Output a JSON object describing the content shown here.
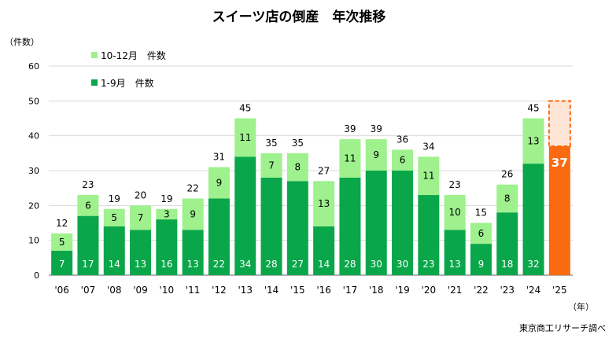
{
  "chart_data": {
    "type": "bar",
    "stacked": true,
    "title": "スイーツ店の倒産　年次推移",
    "ylabel": "（件数）",
    "xlabel": "（年）",
    "source": "東京商工リサーチ調べ",
    "ylim": [
      0,
      60
    ],
    "yticks": [
      "0",
      "10",
      "20",
      "30",
      "40",
      "50",
      "60"
    ],
    "grid": true,
    "legend_position": "top-left",
    "categories": [
      "'06",
      "'07",
      "'08",
      "'09",
      "'10",
      "'11",
      "'12",
      "'13",
      "'14",
      "'15",
      "'16",
      "'17",
      "'18",
      "'19",
      "'20",
      "'21",
      "'22",
      "'23",
      "'24",
      "'25"
    ],
    "series": [
      {
        "name": "1-9月　件数",
        "color": "#0aa64a",
        "values": [
          7,
          17,
          14,
          13,
          16,
          13,
          22,
          34,
          28,
          27,
          14,
          28,
          30,
          30,
          23,
          13,
          9,
          18,
          32,
          37
        ]
      },
      {
        "name": "10-12月　件数",
        "color": "#9ef18d",
        "values": [
          5,
          6,
          5,
          7,
          3,
          9,
          9,
          11,
          7,
          8,
          13,
          11,
          9,
          6,
          11,
          10,
          6,
          8,
          13,
          null
        ]
      }
    ],
    "totals": [
      "12",
      "23",
      "19",
      "20",
      "19",
      "22",
      "31",
      "45",
      "35",
      "35",
      "27",
      "39",
      "39",
      "36",
      "34",
      "23",
      "15",
      "26",
      "45",
      ""
    ],
    "segment_labels": {
      "lower": [
        "7",
        "17",
        "14",
        "13",
        "16",
        "13",
        "22",
        "34",
        "28",
        "27",
        "14",
        "28",
        "30",
        "30",
        "23",
        "13",
        "9",
        "18",
        "32",
        "37"
      ],
      "upper": [
        "5",
        "6",
        "5",
        "7",
        "3",
        "9",
        "9",
        "11",
        "7",
        "8",
        "13",
        "11",
        "9",
        "6",
        "11",
        "10",
        "6",
        "8",
        "13",
        ""
      ]
    },
    "highlight": {
      "category": "'25",
      "color": "#fa6a10",
      "dashed_box_top": 50,
      "dashed_fill": "#fde4d4"
    }
  }
}
